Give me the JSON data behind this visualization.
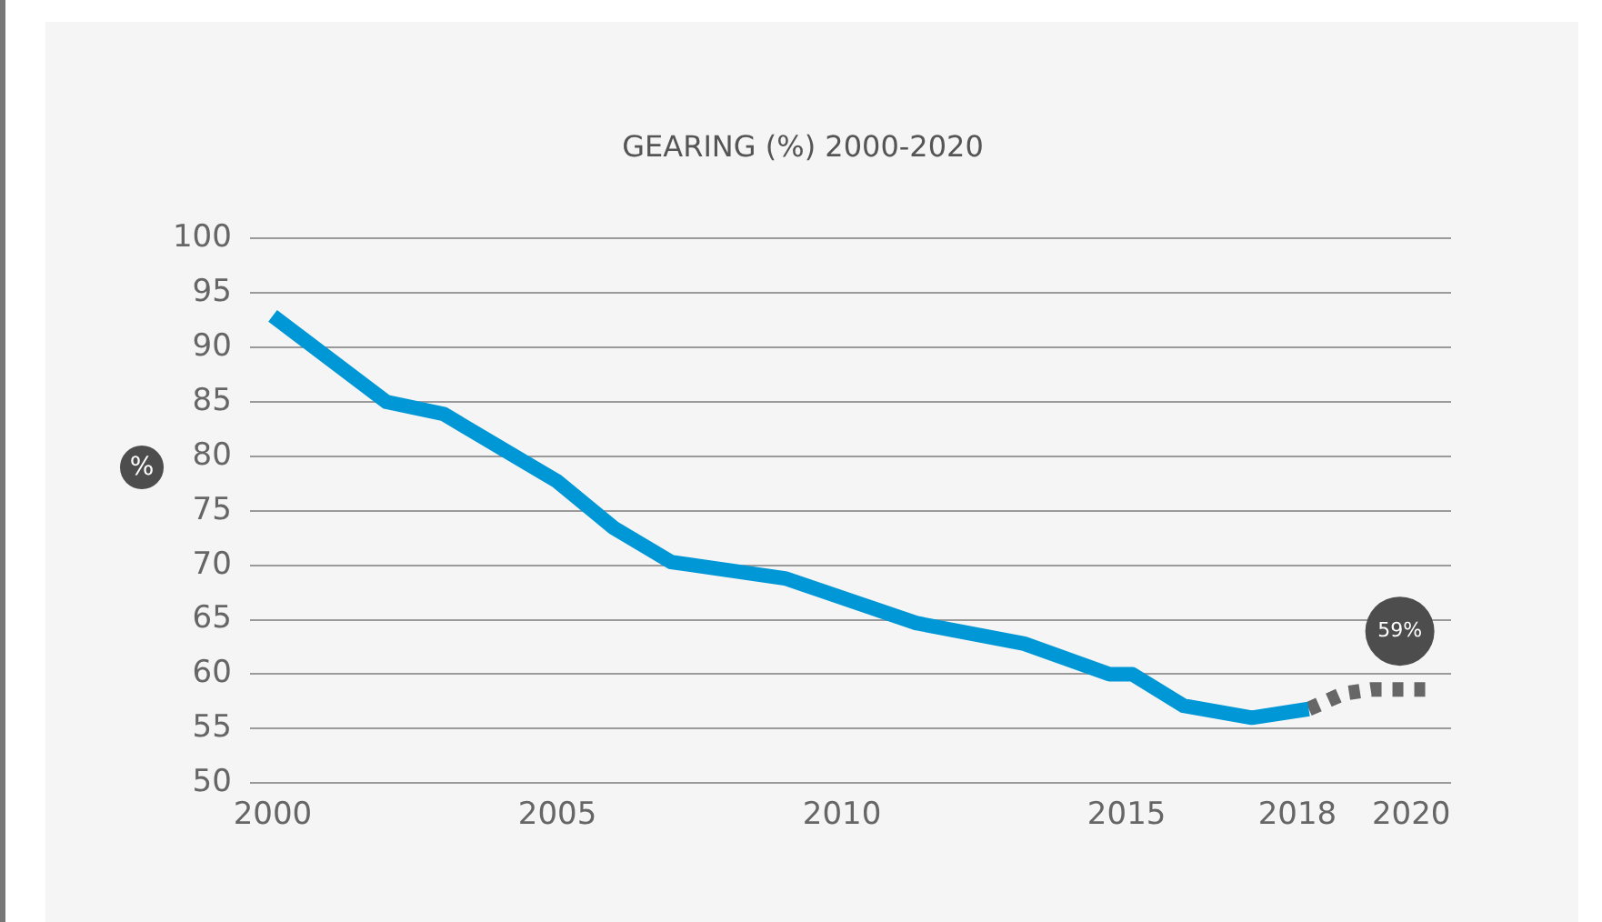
{
  "chart_data": {
    "type": "line",
    "title": "GEARING (%) 2000-2020",
    "ylabel": "%",
    "xlim": [
      1999.6,
      2020.7
    ],
    "xticks": [
      2000,
      2005,
      2010,
      2015,
      2018,
      2020
    ],
    "ylim": [
      50,
      100
    ],
    "yticks": [
      50,
      55,
      60,
      65,
      70,
      75,
      80,
      85,
      90,
      95,
      100
    ],
    "grid": "y",
    "legend": false,
    "marker": "none",
    "series": [
      {
        "color": "#0097d7",
        "line_style": "solid",
        "x": [
          2000,
          2002,
          2003,
          2005,
          2006,
          2007,
          2009,
          2011.3,
          2013.2,
          2014.7,
          2015.1,
          2016,
          2017.2,
          2018.2
        ],
        "values": [
          92.9,
          85,
          83.9,
          77.7,
          73.4,
          70.3,
          68.8,
          64.7,
          62.8,
          60,
          60,
          57.1,
          56,
          56.8
        ]
      },
      {
        "color": "#666666",
        "line_style": "dotted",
        "x": [
          2018.2,
          2018.8,
          2019.3,
          2020.4
        ],
        "values": [
          56.8,
          58.2,
          58.6,
          58.6
        ]
      }
    ],
    "annotations": [
      {
        "text": "59%",
        "x": 2019.8,
        "y": 58.6
      }
    ]
  }
}
